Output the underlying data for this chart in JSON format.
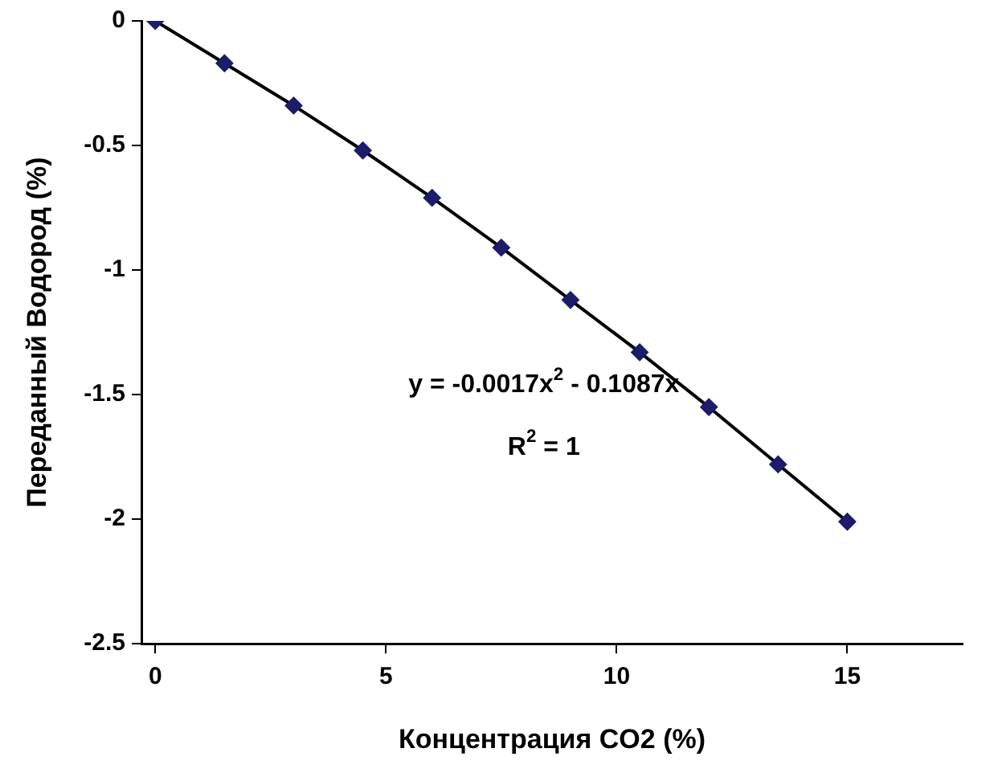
{
  "chart_data": {
    "type": "scatter",
    "xlabel": "Концентрация CO2 (%)",
    "ylabel": "Переданный Водород (%)",
    "x": [
      0,
      1.5,
      3,
      4.5,
      6,
      7.5,
      9,
      10.5,
      12,
      13.5,
      15
    ],
    "series": [
      {
        "type": "scatter",
        "color": "#1c1c6b",
        "marker": "diamond",
        "values": [
          0,
          -0.17,
          -0.34,
          -0.52,
          -0.71,
          -0.91,
          -1.12,
          -1.33,
          -1.55,
          -1.78,
          -2.01
        ]
      },
      {
        "type": "line",
        "color": "#000000",
        "marker": "none",
        "x": [
          0,
          1.5,
          3,
          4.5,
          6,
          7.5,
          9,
          10.5,
          12,
          13.5,
          15
        ],
        "values": [
          0,
          -0.17,
          -0.34,
          -0.52,
          -0.71,
          -0.91,
          -1.12,
          -1.33,
          -1.55,
          -1.78,
          -2.01
        ]
      }
    ],
    "xlim": [
      -0.3,
      17.5
    ],
    "xticks": [
      0,
      5,
      10,
      15
    ],
    "ylim": [
      -2.5,
      0
    ],
    "yticks": [
      -2.5,
      -2,
      -1.5,
      -1,
      -0.5,
      0
    ],
    "grid": false,
    "legend": false,
    "annotations": [
      "y = -0.0017x$^{2}$ - 0.1087x",
      "R$^{2}$ = 1"
    ]
  }
}
